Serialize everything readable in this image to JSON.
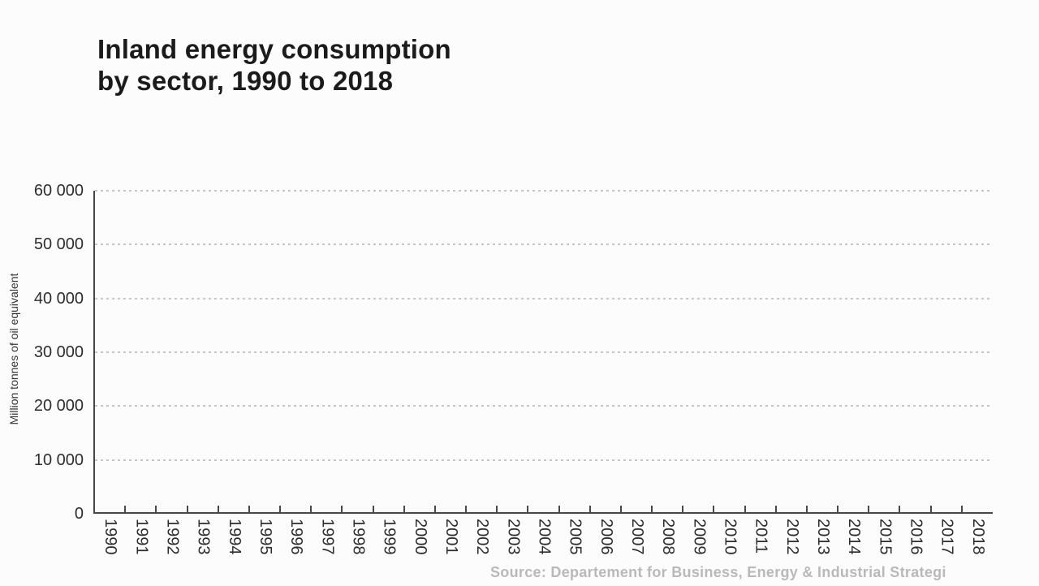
{
  "chart": {
    "title": "Inland energy consumption\nby sector, 1990 to 2018",
    "y_axis": {
      "label": "Million tonnes of oil equivalent"
    },
    "source": "Source: Departement for Business, Energy & Industrial Strategi"
  },
  "chart_data": {
    "type": "line",
    "title": "Inland energy consumption by sector, 1990 to 2018",
    "categories": [
      1990,
      1991,
      1992,
      1993,
      1994,
      1995,
      1996,
      1997,
      1998,
      1999,
      2000,
      2001,
      2002,
      2003,
      2004,
      2005,
      2006,
      2007,
      2008,
      2009,
      2010,
      2011,
      2012,
      2013,
      2014,
      2015,
      2016,
      2017,
      2018
    ],
    "series": [],
    "xlabel": "",
    "ylabel": "Million tonnes of oil equivalent",
    "ylim": [
      0,
      60000
    ],
    "ytick_values": [
      0,
      10000,
      20000,
      30000,
      40000,
      50000,
      60000
    ],
    "ytick_labels": [
      "0",
      "10 000",
      "20 000",
      "30 000",
      "40 000",
      "50 000",
      "60 000"
    ],
    "grid": "horizontal dashed",
    "legend_position": "none",
    "source": "Source: Departement for Business, Energy & Industrial Strategi"
  },
  "colors": {
    "background": "#fcfcfc",
    "title_text": "#1b1b1b",
    "tick_label_text": "#2d2d2d",
    "axis_line": "#474747",
    "gridline": "#c6c6c6",
    "axis_title_text": "#333333",
    "source_text": "#b9b9b9"
  }
}
